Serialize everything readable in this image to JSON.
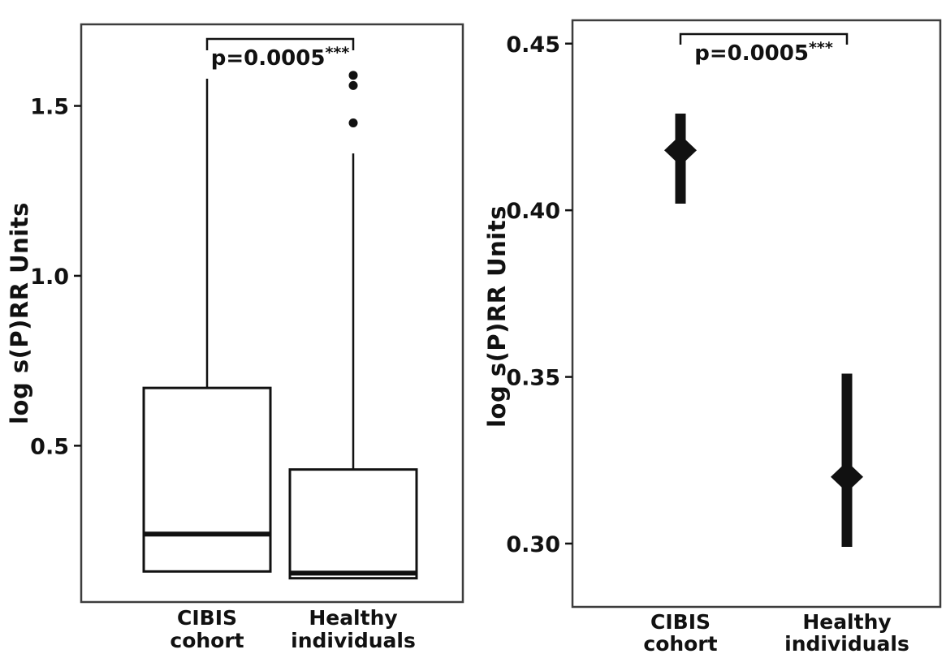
{
  "figure": {
    "background": "#ffffff",
    "ink_color": "#111111",
    "border_color": "#3d3d3d"
  },
  "chart_data": [
    {
      "type": "boxplot",
      "title": "",
      "ylabel": "log s(P)RR Units",
      "ylim": [
        0.04,
        1.74
      ],
      "yticks": [
        {
          "value": 0.5,
          "label": "0.5"
        },
        {
          "value": 1.0,
          "label": "1.0"
        },
        {
          "value": 1.5,
          "label": "1.5"
        }
      ],
      "categories": [
        [
          "CIBIS",
          "cohort"
        ],
        [
          "Healthy",
          "individuals"
        ]
      ],
      "annotation": {
        "text": "p=0.0005***",
        "p_label": "p=0.0005",
        "stars": "***"
      },
      "boxes": [
        {
          "label": "CIBIS cohort",
          "whisker_low": 0.13,
          "q1": 0.13,
          "median": 0.24,
          "q3": 0.67,
          "whisker_high": 1.58,
          "outliers": []
        },
        {
          "label": "Healthy individuals",
          "whisker_low": 0.11,
          "q1": 0.11,
          "median": 0.125,
          "q3": 0.43,
          "whisker_high": 1.36,
          "outliers": [
            1.45,
            1.56,
            1.59
          ]
        }
      ],
      "legend": "off",
      "grid": "off"
    },
    {
      "type": "point-interval",
      "title": "",
      "ylabel": "log s(P)RR Units",
      "ylim": [
        0.281,
        0.457
      ],
      "yticks": [
        {
          "value": 0.3,
          "label": "0.30"
        },
        {
          "value": 0.35,
          "label": "0.35"
        },
        {
          "value": 0.4,
          "label": "0.40"
        },
        {
          "value": 0.45,
          "label": "0.45"
        }
      ],
      "categories": [
        [
          "CIBIS",
          "cohort"
        ],
        [
          "Healthy",
          "individuals"
        ]
      ],
      "annotation": {
        "text": "p=0.0005***",
        "p_label": "p=0.0005",
        "stars": "***"
      },
      "points": [
        {
          "label": "CIBIS cohort",
          "estimate": 0.418,
          "ci_low": 0.402,
          "ci_high": 0.429
        },
        {
          "label": "Healthy individuals",
          "estimate": 0.32,
          "ci_low": 0.299,
          "ci_high": 0.351
        }
      ],
      "legend": "off",
      "grid": "off"
    }
  ]
}
